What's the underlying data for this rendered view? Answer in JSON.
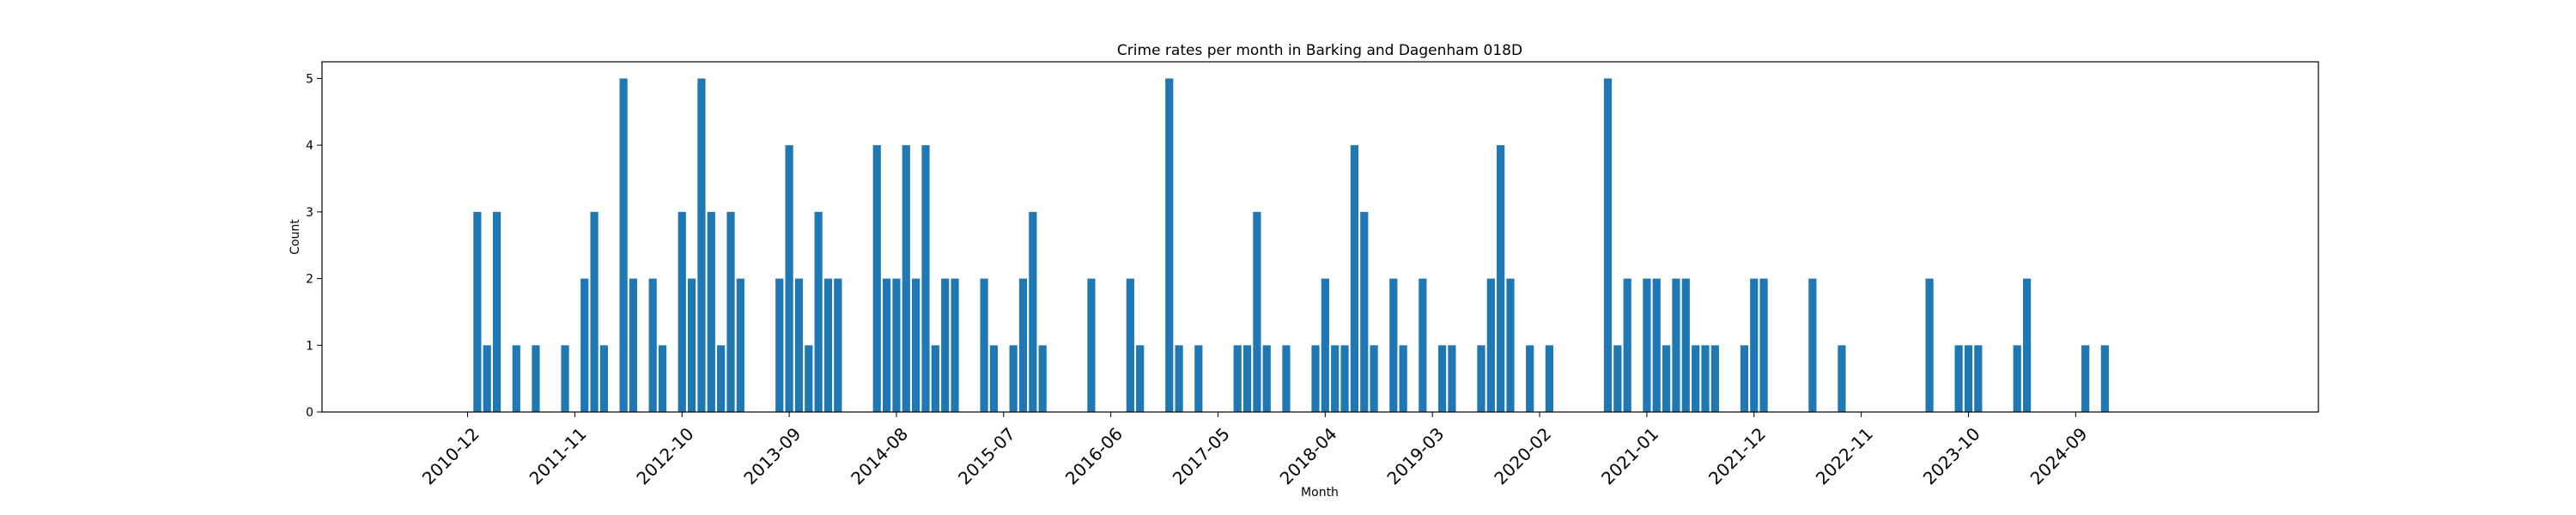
{
  "chart_data": {
    "type": "bar",
    "title": "Crime rates per month in Barking and Dagenham 018D",
    "xlabel": "Month",
    "ylabel": "Count",
    "ylim": [
      0,
      5.25
    ],
    "yticks": [
      0,
      1,
      2,
      3,
      4,
      5
    ],
    "grid": false,
    "legend": "none",
    "bar_color": "#1f77b4",
    "xtick_labels": [
      "2010-12",
      "2011-11",
      "2012-10",
      "2013-09",
      "2014-08",
      "2015-07",
      "2016-06",
      "2017-05",
      "2018-04",
      "2019-03",
      "2020-02",
      "2021-01",
      "2021-12",
      "2022-11",
      "2023-10",
      "2024-09"
    ],
    "bars": [
      {
        "x": "2011-01",
        "y": 3
      },
      {
        "x": "2011-02",
        "y": 1
      },
      {
        "x": "2011-03",
        "y": 3
      },
      {
        "x": "2011-05",
        "y": 1
      },
      {
        "x": "2011-07",
        "y": 1
      },
      {
        "x": "2011-10",
        "y": 1
      },
      {
        "x": "2011-12",
        "y": 2
      },
      {
        "x": "2012-01",
        "y": 3
      },
      {
        "x": "2012-02",
        "y": 1
      },
      {
        "x": "2012-04",
        "y": 5
      },
      {
        "x": "2012-05",
        "y": 2
      },
      {
        "x": "2012-07",
        "y": 2
      },
      {
        "x": "2012-08",
        "y": 1
      },
      {
        "x": "2012-10",
        "y": 3
      },
      {
        "x": "2012-11",
        "y": 2
      },
      {
        "x": "2012-12",
        "y": 5
      },
      {
        "x": "2013-01",
        "y": 3
      },
      {
        "x": "2013-02",
        "y": 1
      },
      {
        "x": "2013-03",
        "y": 3
      },
      {
        "x": "2013-04",
        "y": 2
      },
      {
        "x": "2013-08",
        "y": 2
      },
      {
        "x": "2013-09",
        "y": 4
      },
      {
        "x": "2013-10",
        "y": 2
      },
      {
        "x": "2013-11",
        "y": 1
      },
      {
        "x": "2013-12",
        "y": 3
      },
      {
        "x": "2014-01",
        "y": 2
      },
      {
        "x": "2014-02",
        "y": 2
      },
      {
        "x": "2014-06",
        "y": 4
      },
      {
        "x": "2014-07",
        "y": 2
      },
      {
        "x": "2014-08",
        "y": 2
      },
      {
        "x": "2014-09",
        "y": 4
      },
      {
        "x": "2014-10",
        "y": 2
      },
      {
        "x": "2014-11",
        "y": 4
      },
      {
        "x": "2014-12",
        "y": 1
      },
      {
        "x": "2015-01",
        "y": 2
      },
      {
        "x": "2015-02",
        "y": 2
      },
      {
        "x": "2015-05",
        "y": 2
      },
      {
        "x": "2015-06",
        "y": 1
      },
      {
        "x": "2015-08",
        "y": 1
      },
      {
        "x": "2015-09",
        "y": 2
      },
      {
        "x": "2015-10",
        "y": 3
      },
      {
        "x": "2015-11",
        "y": 1
      },
      {
        "x": "2016-04",
        "y": 2
      },
      {
        "x": "2016-08",
        "y": 2
      },
      {
        "x": "2016-09",
        "y": 1
      },
      {
        "x": "2016-12",
        "y": 5
      },
      {
        "x": "2017-01",
        "y": 1
      },
      {
        "x": "2017-03",
        "y": 1
      },
      {
        "x": "2017-07",
        "y": 1
      },
      {
        "x": "2017-08",
        "y": 1
      },
      {
        "x": "2017-09",
        "y": 3
      },
      {
        "x": "2017-10",
        "y": 1
      },
      {
        "x": "2017-12",
        "y": 1
      },
      {
        "x": "2018-03",
        "y": 1
      },
      {
        "x": "2018-04",
        "y": 2
      },
      {
        "x": "2018-05",
        "y": 1
      },
      {
        "x": "2018-06",
        "y": 1
      },
      {
        "x": "2018-07",
        "y": 4
      },
      {
        "x": "2018-08",
        "y": 3
      },
      {
        "x": "2018-09",
        "y": 1
      },
      {
        "x": "2018-11",
        "y": 2
      },
      {
        "x": "2018-12",
        "y": 1
      },
      {
        "x": "2019-02",
        "y": 2
      },
      {
        "x": "2019-04",
        "y": 1
      },
      {
        "x": "2019-05",
        "y": 1
      },
      {
        "x": "2019-08",
        "y": 1
      },
      {
        "x": "2019-09",
        "y": 2
      },
      {
        "x": "2019-10",
        "y": 4
      },
      {
        "x": "2019-11",
        "y": 2
      },
      {
        "x": "2020-01",
        "y": 1
      },
      {
        "x": "2020-03",
        "y": 1
      },
      {
        "x": "2020-09",
        "y": 5
      },
      {
        "x": "2020-10",
        "y": 1
      },
      {
        "x": "2020-11",
        "y": 2
      },
      {
        "x": "2021-01",
        "y": 2
      },
      {
        "x": "2021-02",
        "y": 2
      },
      {
        "x": "2021-03",
        "y": 1
      },
      {
        "x": "2021-04",
        "y": 2
      },
      {
        "x": "2021-05",
        "y": 2
      },
      {
        "x": "2021-06",
        "y": 1
      },
      {
        "x": "2021-07",
        "y": 1
      },
      {
        "x": "2021-08",
        "y": 1
      },
      {
        "x": "2021-11",
        "y": 1
      },
      {
        "x": "2021-12",
        "y": 2
      },
      {
        "x": "2022-01",
        "y": 2
      },
      {
        "x": "2022-06",
        "y": 2
      },
      {
        "x": "2022-09",
        "y": 1
      },
      {
        "x": "2023-06",
        "y": 2
      },
      {
        "x": "2023-09",
        "y": 1
      },
      {
        "x": "2023-10",
        "y": 1
      },
      {
        "x": "2023-11",
        "y": 1
      },
      {
        "x": "2024-03",
        "y": 1
      },
      {
        "x": "2024-04",
        "y": 2
      },
      {
        "x": "2024-10",
        "y": 1
      },
      {
        "x": "2024-12",
        "y": 1
      }
    ]
  }
}
